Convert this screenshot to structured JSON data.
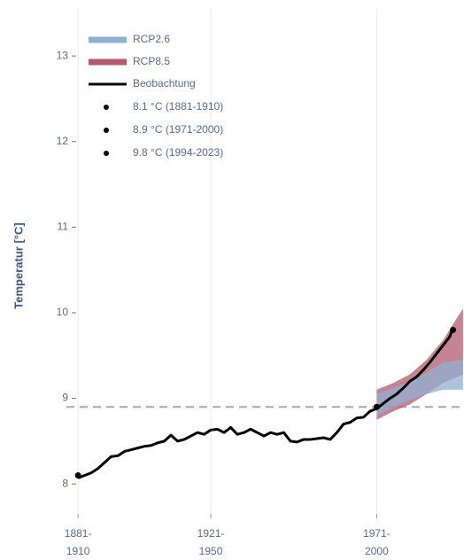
{
  "chart_data": {
    "type": "line",
    "y_label": "Temperatur [°C]",
    "xlim": [
      1906.5,
      2026.3
    ],
    "ylim": [
      7.65,
      13.55
    ],
    "xticks": [
      {
        "value": 1910,
        "label": "1881-\n1910"
      },
      {
        "value": 1950,
        "label": "1921-\n1950"
      },
      {
        "value": 2000,
        "label": "1971-\n2000"
      }
    ],
    "yticks": [
      8,
      9,
      10,
      11,
      12,
      13
    ],
    "grid": true,
    "legend": "upper left",
    "reference_line": 8.9,
    "bands": [
      {
        "name": "RCP8.5",
        "color": "#b35a6e",
        "x": [
          2000,
          2005,
          2010,
          2015,
          2020,
          2026
        ],
        "lower": [
          8.75,
          8.85,
          8.93,
          9.05,
          9.18,
          9.28
        ],
        "upper": [
          9.1,
          9.18,
          9.28,
          9.45,
          9.68,
          10.05
        ]
      },
      {
        "name": "RCP2.6",
        "color": "#8fb0d0",
        "x": [
          2000,
          2005,
          2010,
          2015,
          2020,
          2026
        ],
        "lower": [
          8.8,
          8.9,
          8.98,
          9.05,
          9.1,
          9.1
        ],
        "upper": [
          9.05,
          9.12,
          9.2,
          9.3,
          9.42,
          9.45
        ]
      }
    ],
    "series": [
      {
        "name": "Beobachtung",
        "color": "#000000",
        "x": [
          1910,
          1912,
          1914,
          1916,
          1918,
          1920,
          1922,
          1924,
          1926,
          1928,
          1930,
          1932,
          1934,
          1936,
          1938,
          1940,
          1942,
          1944,
          1946,
          1948,
          1950,
          1952,
          1954,
          1956,
          1958,
          1960,
          1962,
          1964,
          1966,
          1968,
          1970,
          1972,
          1974,
          1976,
          1978,
          1980,
          1982,
          1984,
          1986,
          1988,
          1990,
          1992,
          1994,
          1996,
          1998,
          2000,
          2002,
          2004,
          2006,
          2008,
          2010,
          2012,
          2014,
          2016,
          2018,
          2020,
          2022,
          2023
        ],
        "values": [
          8.07,
          8.1,
          8.13,
          8.18,
          8.25,
          8.32,
          8.33,
          8.38,
          8.4,
          8.42,
          8.44,
          8.45,
          8.48,
          8.5,
          8.57,
          8.5,
          8.52,
          8.56,
          8.6,
          8.58,
          8.63,
          8.64,
          8.6,
          8.66,
          8.58,
          8.6,
          8.64,
          8.6,
          8.56,
          8.6,
          8.58,
          8.6,
          8.5,
          8.49,
          8.52,
          8.52,
          8.53,
          8.54,
          8.52,
          8.6,
          8.7,
          8.72,
          8.77,
          8.78,
          8.85,
          8.88,
          8.94,
          9.0,
          9.05,
          9.12,
          9.2,
          9.25,
          9.33,
          9.42,
          9.52,
          9.62,
          9.72,
          9.83
        ]
      }
    ],
    "markers": [
      {
        "label": "8.1 °C (1881-1910)",
        "x": 1910,
        "y": 8.1
      },
      {
        "label": "8.9 °C (1971-2000)",
        "x": 2000,
        "y": 8.9
      },
      {
        "label": "9.8 °C (1994-2023)",
        "x": 2023,
        "y": 9.8
      }
    ]
  }
}
